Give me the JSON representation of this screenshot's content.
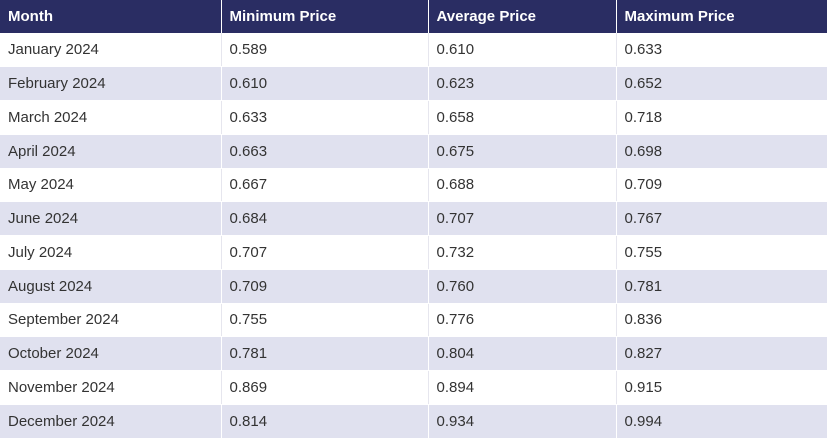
{
  "table": {
    "headers": [
      "Month",
      "Minimum Price",
      "Average Price",
      "Maximum Price"
    ],
    "rows": [
      [
        "January 2024",
        "0.589",
        "0.610",
        "0.633"
      ],
      [
        "February 2024",
        "0.610",
        "0.623",
        "0.652"
      ],
      [
        "March 2024",
        "0.633",
        "0.658",
        "0.718"
      ],
      [
        "April 2024",
        "0.663",
        "0.675",
        "0.698"
      ],
      [
        "May 2024",
        "0.667",
        "0.688",
        "0.709"
      ],
      [
        "June 2024",
        "0.684",
        "0.707",
        "0.767"
      ],
      [
        "July 2024",
        "0.707",
        "0.732",
        "0.755"
      ],
      [
        "August 2024",
        "0.709",
        "0.760",
        "0.781"
      ],
      [
        "September 2024",
        "0.755",
        "0.776",
        "0.836"
      ],
      [
        "October 2024",
        "0.781",
        "0.804",
        "0.827"
      ],
      [
        "November 2024",
        "0.869",
        "0.894",
        "0.915"
      ],
      [
        "December 2024",
        "0.814",
        "0.934",
        "0.994"
      ]
    ]
  },
  "colors": {
    "header_bg": "#2a2d63",
    "header_text": "#ffffff",
    "row_alt_bg": "#e0e1ef",
    "row_bg": "#ffffff",
    "cell_text": "#333333"
  }
}
